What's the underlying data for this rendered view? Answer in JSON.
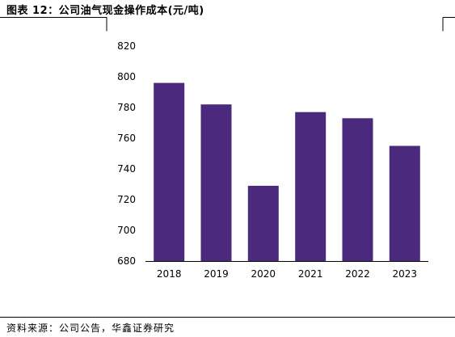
{
  "header": {
    "title": "图表 12：公司油气现金操作成本(元/吨)"
  },
  "footer": {
    "source": "资料来源：公司公告，华鑫证券研究"
  },
  "chart_data": {
    "type": "bar",
    "title": "",
    "xlabel": "",
    "ylabel": "",
    "categories": [
      "2018",
      "2019",
      "2020",
      "2021",
      "2022",
      "2023"
    ],
    "values": [
      796,
      782,
      729,
      777,
      773,
      755
    ],
    "ylim": [
      680,
      820
    ],
    "yticks": [
      680,
      700,
      720,
      740,
      760,
      780,
      800,
      820
    ],
    "grid": false,
    "legend": "none",
    "colors": {
      "bar": "#4b2a7e",
      "axis": "#000000"
    }
  }
}
